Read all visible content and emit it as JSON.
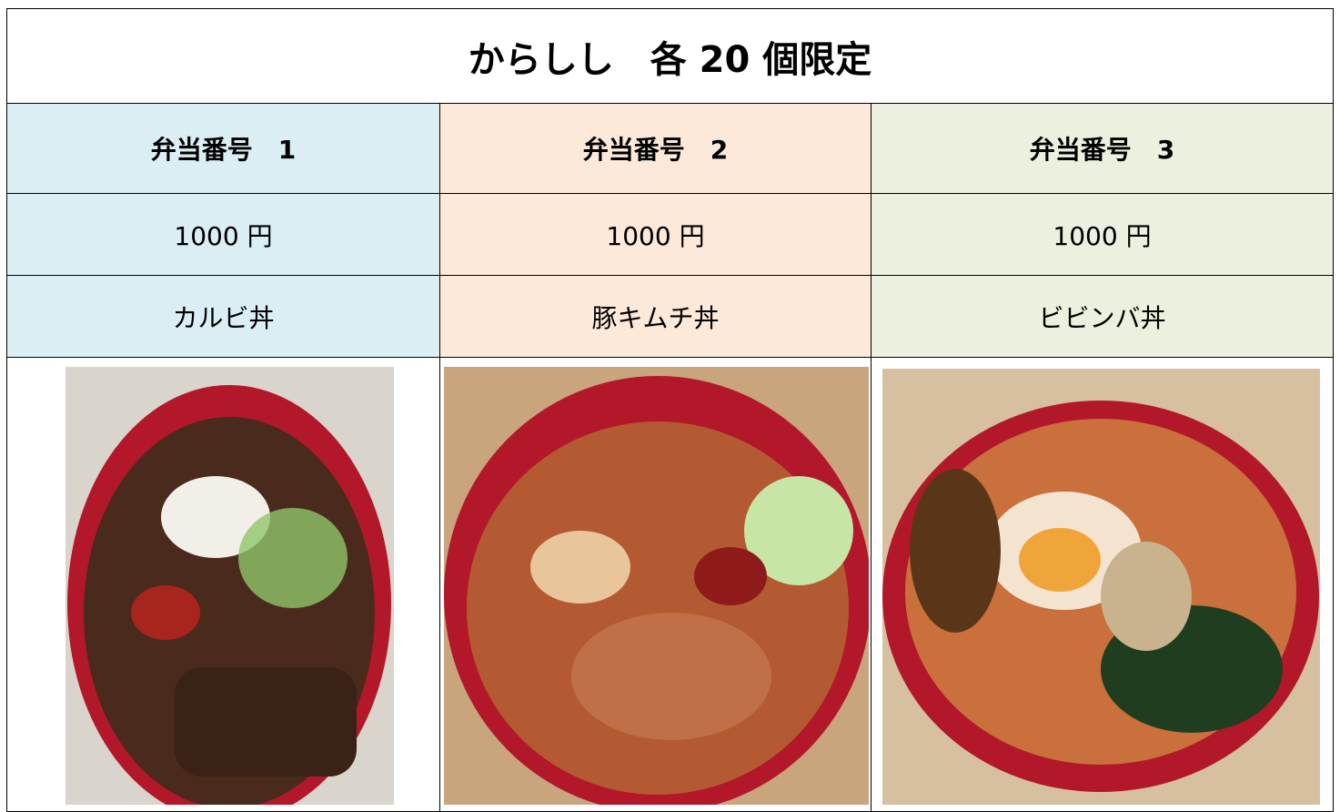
{
  "title": "からしし　各 20 個限定",
  "table": {
    "rows": [
      [
        "弁当番号　1",
        "弁当番号　2",
        "弁当番号　3"
      ],
      [
        "1000 円",
        "1000 円",
        "1000 円"
      ],
      [
        "カルビ丼",
        "豚キムチ丼",
        "ビビンバ丼"
      ]
    ]
  }
}
